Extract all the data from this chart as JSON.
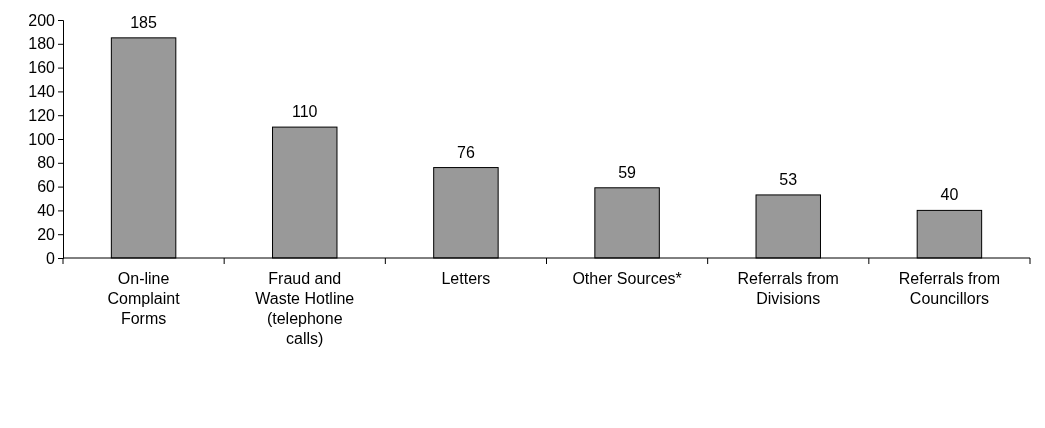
{
  "chart_data": {
    "type": "bar",
    "categories": [
      "On-line Complaint Forms",
      "Fraud and Waste Hotline (telephone calls)",
      "Letters",
      "Other Sources*",
      "Referrals from Divisions",
      "Referrals from Councillors"
    ],
    "values": [
      185,
      110,
      76,
      59,
      53,
      40
    ],
    "color": "#999999",
    "ylim": [
      0,
      200
    ],
    "yticks": [
      0,
      20,
      40,
      60,
      80,
      100,
      120,
      140,
      160,
      180,
      200
    ],
    "data_labels": true,
    "grid": false
  }
}
